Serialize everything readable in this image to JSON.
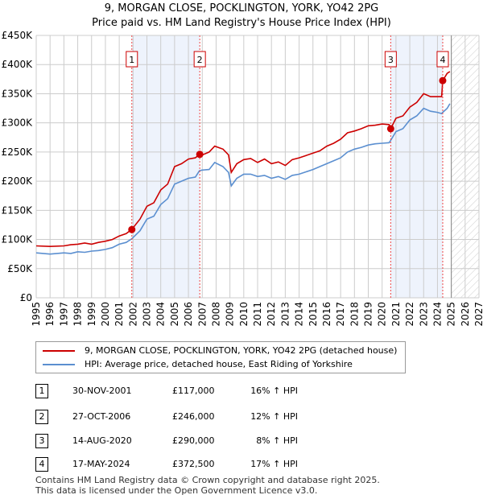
{
  "header": {
    "title": "9, MORGAN CLOSE, POCKLINGTON, YORK, YO42 2PG",
    "subtitle": "Price paid vs. HM Land Registry's House Price Index (HPI)"
  },
  "chart_data": {
    "type": "line",
    "title": "9, MORGAN CLOSE, POCKLINGTON, YORK, YO42 2PG",
    "subtitle": "Price paid vs. HM Land Registry's House Price Index (HPI)",
    "xlim": [
      1995,
      2027
    ],
    "ylim": [
      0,
      450000
    ],
    "x_ticks": [
      "1995",
      "1996",
      "1997",
      "1998",
      "1999",
      "2000",
      "2001",
      "2002",
      "2003",
      "2004",
      "2005",
      "2006",
      "2007",
      "2008",
      "2009",
      "2010",
      "2011",
      "2012",
      "2013",
      "2014",
      "2015",
      "2016",
      "2017",
      "2018",
      "2019",
      "2020",
      "2021",
      "2022",
      "2023",
      "2024",
      "2025",
      "2026",
      "2027"
    ],
    "y_ticks": [
      {
        "v": 0,
        "label": "£0"
      },
      {
        "v": 50000,
        "label": "£50K"
      },
      {
        "v": 100000,
        "label": "£100K"
      },
      {
        "v": 150000,
        "label": "£150K"
      },
      {
        "v": 200000,
        "label": "£200K"
      },
      {
        "v": 250000,
        "label": "£250K"
      },
      {
        "v": 300000,
        "label": "£300K"
      },
      {
        "v": 350000,
        "label": "£350K"
      },
      {
        "v": 400000,
        "label": "£400K"
      },
      {
        "v": 450000,
        "label": "£450K"
      }
    ],
    "grid": true,
    "series": [
      {
        "name": "9, MORGAN CLOSE, POCKLINGTON, YORK, YO42 2PG (detached house)",
        "color": "#cc0000",
        "x": [
          1995,
          1996,
          1997,
          1997.5,
          1998,
          1998.5,
          1999,
          1999.5,
          2000,
          2000.5,
          2001,
          2001.5,
          2001.9,
          2002.5,
          2003,
          2003.5,
          2004,
          2004.5,
          2005,
          2005.5,
          2006,
          2006.5,
          2006.8,
          2007,
          2007.5,
          2007.9,
          2008.5,
          2008.9,
          2009.1,
          2009.5,
          2010,
          2010.5,
          2011,
          2011.5,
          2012,
          2012.5,
          2013,
          2013.5,
          2014,
          2014.5,
          2015,
          2015.5,
          2016,
          2016.5,
          2017,
          2017.5,
          2018,
          2018.5,
          2019,
          2019.5,
          2020,
          2020.5,
          2020.62,
          2021,
          2021.5,
          2022,
          2022.5,
          2023,
          2023.5,
          2024,
          2024.3,
          2024.38,
          2024.7,
          2024.9
        ],
        "values": [
          89000,
          88000,
          89000,
          91000,
          92000,
          94000,
          92000,
          95000,
          97000,
          100000,
          106000,
          110000,
          117000,
          135000,
          157000,
          163000,
          185000,
          195000,
          225000,
          230000,
          238000,
          240000,
          246000,
          245000,
          250000,
          260000,
          255000,
          245000,
          215000,
          230000,
          237000,
          239000,
          232000,
          238000,
          230000,
          233000,
          227000,
          237000,
          240000,
          244000,
          248000,
          252000,
          260000,
          265000,
          272000,
          283000,
          286000,
          290000,
          295000,
          296000,
          298000,
          297000,
          290000,
          308000,
          312000,
          327000,
          335000,
          350000,
          345000,
          345000,
          345000,
          372500,
          385000,
          388000
        ]
      },
      {
        "name": "HPI: Average price, detached house, East Riding of Yorkshire",
        "color": "#5b8fd0",
        "x": [
          1995,
          1996,
          1997,
          1997.5,
          1998,
          1998.5,
          1999,
          1999.5,
          2000,
          2000.5,
          2001,
          2001.5,
          2001.9,
          2002.5,
          2003,
          2003.5,
          2004,
          2004.5,
          2005,
          2005.5,
          2006,
          2006.5,
          2006.8,
          2007,
          2007.5,
          2007.9,
          2008.5,
          2008.9,
          2009.1,
          2009.5,
          2010,
          2010.5,
          2011,
          2011.5,
          2012,
          2012.5,
          2013,
          2013.5,
          2014,
          2014.5,
          2015,
          2015.5,
          2016,
          2016.5,
          2017,
          2017.5,
          2018,
          2018.5,
          2019,
          2019.5,
          2020,
          2020.5,
          2020.62,
          2021,
          2021.5,
          2022,
          2022.5,
          2023,
          2023.5,
          2024,
          2024.3,
          2024.38,
          2024.7,
          2024.9
        ],
        "values": [
          77000,
          75000,
          77000,
          76000,
          79000,
          78000,
          80000,
          81000,
          83000,
          86000,
          92000,
          95000,
          101000,
          115000,
          135000,
          140000,
          160000,
          170000,
          195000,
          200000,
          205000,
          207000,
          218000,
          219000,
          220000,
          232000,
          225000,
          215000,
          192000,
          205000,
          212000,
          212000,
          208000,
          210000,
          205000,
          208000,
          203000,
          210000,
          212000,
          216000,
          220000,
          225000,
          230000,
          235000,
          240000,
          250000,
          255000,
          258000,
          262000,
          264000,
          265000,
          266000,
          270000,
          285000,
          290000,
          305000,
          312000,
          325000,
          320000,
          318000,
          316000,
          318000,
          325000,
          333000
        ]
      }
    ],
    "sales": [
      {
        "id": "1",
        "x": 2001.91,
        "value": 117000,
        "date": "30-NOV-2001",
        "price": "£117,000",
        "hpi": "16% ↑ HPI"
      },
      {
        "id": "2",
        "x": 2006.82,
        "value": 246000,
        "date": "27-OCT-2006",
        "price": "£246,000",
        "hpi": "12% ↑ HPI"
      },
      {
        "id": "3",
        "x": 2020.62,
        "value": 290000,
        "date": "14-AUG-2020",
        "price": "£290,000",
        "hpi": "8% ↑ HPI"
      },
      {
        "id": "4",
        "x": 2024.38,
        "value": 372500,
        "date": "17-MAY-2024",
        "price": "£372,500",
        "hpi": "17% ↑ HPI"
      }
    ],
    "shaded_ranges": [
      [
        2001.91,
        2006.82
      ],
      [
        2020.62,
        2024.38
      ]
    ],
    "forecast_start": 2025.0
  },
  "legend": {
    "red": "9, MORGAN CLOSE, POCKLINGTON, YORK, YO42 2PG (detached house)",
    "blue": "HPI: Average price, detached house, East Riding of Yorkshire"
  },
  "footer": {
    "line1": "Contains HM Land Registry data © Crown copyright and database right 2025.",
    "line2": "This data is licensed under the Open Government Licence v3.0."
  }
}
